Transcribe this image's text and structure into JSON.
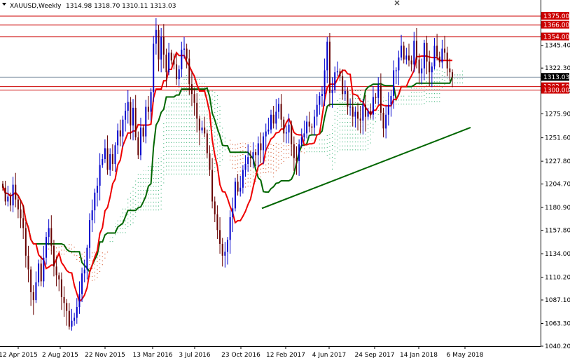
{
  "header": {
    "symbol_line": "XAUUSD,Weekly",
    "ohlc": "1314.98 1318.70 1310.11 1313.03",
    "menu_icon": "triangle-down-icon",
    "close_icon": "close-icon"
  },
  "chart_data": {
    "type": "candlestick",
    "title": "XAUUSD,Weekly",
    "ohlc": {
      "open": 1314.98,
      "high": 1318.7,
      "low": 1310.11,
      "close": 1313.03
    },
    "ylim": [
      1040.2,
      1380.0
    ],
    "y_ticks": [
      1345.4,
      1322.3,
      1299.0,
      1275.9,
      1251.6,
      1227.8,
      1204.7,
      1180.9,
      1157.8,
      1134.0,
      1110.2,
      1087.1,
      1063.3,
      1040.2
    ],
    "x_ticks": [
      "12 Apr 2015",
      "2 Aug 2015",
      "22 Nov 2015",
      "13 Mar 2016",
      "3 Jul 2016",
      "23 Oct 2016",
      "12 Feb 2017",
      "4 Jun 2017",
      "24 Sep 2017",
      "14 Jan 2018",
      "6 May 2018"
    ],
    "level_labels": [
      "1375.00",
      "1366.00",
      "1354.00",
      "1313.03",
      "1303.50",
      "1300.00"
    ],
    "horizontal_levels": [
      1375.0,
      1366.0,
      1354.0,
      1303.5,
      1300.0
    ],
    "current_price": 1313.03,
    "trendline": [
      [
        6,
        1180
      ],
      [
        38,
        1262
      ]
    ],
    "colors": {
      "bull": "#0000cc",
      "bear": "#660000",
      "tenkan": "#ee0000",
      "kijun": "#006600",
      "levels": "#cc0000",
      "cloud_bull": "#22aa66",
      "cloud_bear": "#cc3300",
      "trend": "#006600",
      "price_label_bg": "#000000"
    },
    "closes": [
      1201,
      1187,
      1192,
      1183,
      1204,
      1189,
      1179,
      1170,
      1160,
      1132,
      1118,
      1095,
      1087,
      1105,
      1124,
      1106,
      1130,
      1151,
      1160,
      1142,
      1121,
      1112,
      1108,
      1090,
      1084,
      1076,
      1060,
      1066,
      1069,
      1080,
      1093,
      1114,
      1118,
      1140,
      1168,
      1178,
      1196,
      1203,
      1224,
      1230,
      1241,
      1219,
      1235,
      1225,
      1244,
      1259,
      1253,
      1270,
      1279,
      1288,
      1264,
      1282,
      1252,
      1234,
      1262,
      1253,
      1283,
      1278,
      1298,
      1347,
      1361,
      1331,
      1354,
      1336,
      1318,
      1338,
      1330,
      1326,
      1311,
      1321,
      1341,
      1342,
      1332,
      1306,
      1296,
      1287,
      1271,
      1259,
      1262,
      1256,
      1236,
      1219,
      1187,
      1174,
      1158,
      1144,
      1132,
      1136,
      1148,
      1171,
      1180,
      1207,
      1197,
      1201,
      1219,
      1225,
      1232,
      1231,
      1237,
      1234,
      1246,
      1239,
      1253,
      1258,
      1260,
      1275,
      1266,
      1278,
      1286,
      1270,
      1256,
      1257,
      1265,
      1245,
      1231,
      1228,
      1245,
      1252,
      1256,
      1268,
      1263,
      1262,
      1273,
      1285,
      1294,
      1296,
      1320,
      1349,
      1297,
      1300,
      1318,
      1319,
      1314,
      1296,
      1299,
      1283,
      1283,
      1273,
      1278,
      1271,
      1269,
      1285,
      1273,
      1279,
      1275,
      1293,
      1292,
      1305,
      1277,
      1261,
      1275,
      1285,
      1294,
      1320,
      1320,
      1333,
      1345,
      1331,
      1335,
      1330,
      1326,
      1350,
      1331,
      1317,
      1322,
      1348,
      1329,
      1318,
      1324,
      1345,
      1334,
      1328,
      1342,
      1338,
      1322,
      1318,
      1313
    ]
  }
}
